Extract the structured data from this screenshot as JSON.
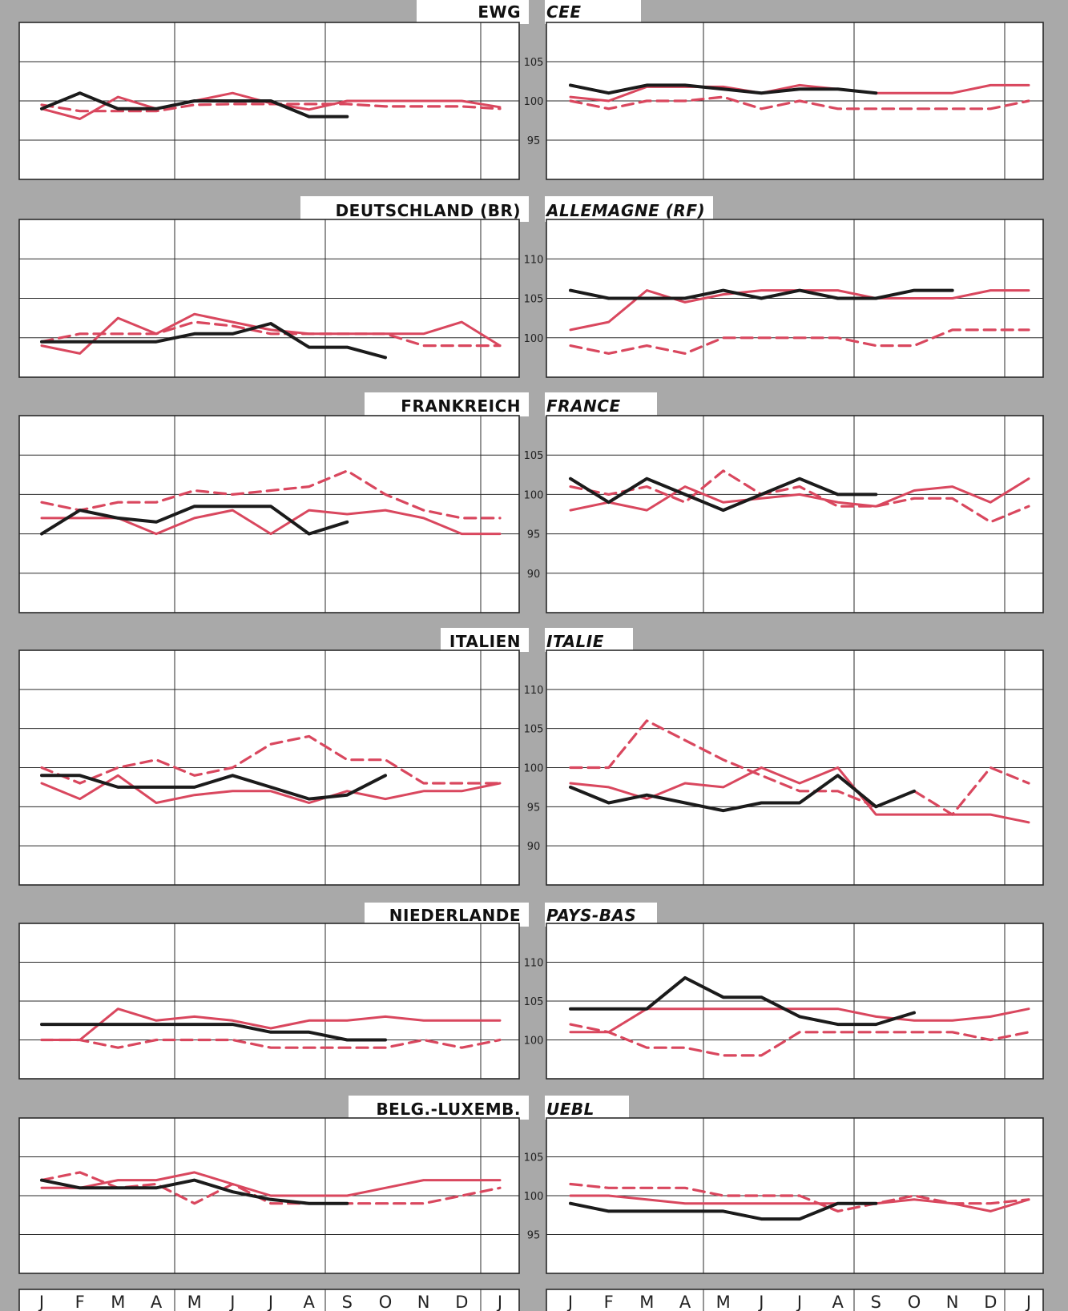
{
  "months": [
    "J",
    "F",
    "M",
    "A",
    "M",
    "J",
    "J",
    "A",
    "S",
    "O",
    "N",
    "D",
    "J"
  ],
  "colors": {
    "black": "#1b1b1b",
    "red": "#d9475e",
    "grid": "#2a2a2a",
    "gray": "#a9a9a9"
  },
  "chart_data": [
    {
      "type": "line",
      "title_de": "EWG",
      "title_fr": "CEE",
      "yticks": [
        95,
        100,
        105
      ],
      "ylim": [
        90,
        110
      ],
      "left": [
        {
          "style": "red-solid",
          "values": [
            99,
            97.7,
            100.5,
            99,
            100,
            101,
            99.7,
            98.9,
            100,
            100,
            100,
            100,
            99.2
          ]
        },
        {
          "style": "red-dashed",
          "values": [
            99.5,
            98.7,
            98.7,
            98.7,
            99.5,
            99.6,
            99.6,
            99.6,
            99.6,
            99.3,
            99.3,
            99.3,
            99
          ]
        },
        {
          "style": "black",
          "values": [
            99,
            101,
            99,
            99,
            100,
            100,
            100,
            98,
            98
          ]
        }
      ],
      "right": [
        {
          "style": "red-solid",
          "values": [
            100.5,
            100,
            101.8,
            101.8,
            101.8,
            101,
            102,
            101.5,
            101,
            101,
            101,
            102,
            102
          ]
        },
        {
          "style": "red-dashed",
          "values": [
            100,
            99,
            100,
            100,
            100.5,
            99,
            100,
            99,
            99,
            99,
            99,
            99,
            100
          ]
        },
        {
          "style": "black",
          "values": [
            102,
            101,
            102,
            102,
            101.5,
            101,
            101.5,
            101.5,
            101
          ]
        }
      ]
    },
    {
      "type": "line",
      "title_de": "DEUTSCHLAND (BR)",
      "title_fr": "ALLEMAGNE (RF)",
      "yticks": [
        100,
        105,
        110
      ],
      "ylim": [
        95,
        115
      ],
      "left": [
        {
          "style": "red-solid",
          "values": [
            99,
            98,
            102.5,
            100.5,
            103,
            102,
            101,
            100.5,
            100.5,
            100.5,
            100.5,
            102,
            99
          ]
        },
        {
          "style": "red-dashed",
          "values": [
            99.5,
            100.5,
            100.5,
            100.5,
            102,
            101.5,
            100.5,
            100.5,
            100.5,
            100.5,
            99,
            99,
            99
          ]
        },
        {
          "style": "black",
          "values": [
            99.5,
            99.5,
            99.5,
            99.5,
            100.5,
            100.5,
            101.8,
            98.8,
            98.8,
            97.5
          ]
        }
      ],
      "right": [
        {
          "style": "red-solid",
          "values": [
            101,
            102,
            106,
            104.5,
            105.5,
            106,
            106,
            106,
            105,
            105,
            105,
            106,
            106
          ]
        },
        {
          "style": "red-dashed",
          "values": [
            99,
            98,
            99,
            98,
            100,
            100,
            100,
            100,
            99,
            99,
            101,
            101,
            101
          ]
        },
        {
          "style": "black",
          "values": [
            106,
            105,
            105,
            105,
            106,
            105,
            106,
            105,
            105,
            106,
            106
          ]
        }
      ]
    },
    {
      "type": "line",
      "title_de": "FRANKREICH",
      "title_fr": "FRANCE",
      "yticks": [
        90,
        95,
        100,
        105
      ],
      "ylim": [
        85,
        110
      ],
      "left": [
        {
          "style": "red-solid",
          "values": [
            97,
            97,
            97,
            95,
            97,
            98,
            95,
            98,
            97.5,
            98,
            97,
            95,
            95
          ]
        },
        {
          "style": "red-dashed",
          "values": [
            99,
            98,
            99,
            99,
            100.5,
            100,
            100.5,
            101,
            103,
            100,
            98,
            97,
            97
          ]
        },
        {
          "style": "black",
          "values": [
            95,
            98,
            97,
            96.5,
            98.5,
            98.5,
            98.5,
            95,
            96.5
          ]
        }
      ],
      "right": [
        {
          "style": "red-solid",
          "values": [
            98,
            99,
            98,
            101,
            99,
            99.5,
            100,
            99,
            98.5,
            100.5,
            101,
            99,
            102
          ]
        },
        {
          "style": "red-dashed",
          "values": [
            101,
            100,
            101,
            99,
            103,
            100,
            101,
            98.5,
            98.5,
            99.5,
            99.5,
            96.5,
            98.5
          ]
        },
        {
          "style": "black",
          "values": [
            102,
            99,
            102,
            100,
            98,
            100,
            102,
            100,
            100
          ]
        }
      ]
    },
    {
      "type": "line",
      "title_de": "ITALIEN",
      "title_fr": "ITALIE",
      "yticks": [
        90,
        95,
        100,
        105,
        110
      ],
      "ylim": [
        85,
        115
      ],
      "left": [
        {
          "style": "red-solid",
          "values": [
            98,
            96,
            99,
            95.5,
            96.5,
            97,
            97,
            95.5,
            97,
            96,
            97,
            97,
            98
          ]
        },
        {
          "style": "red-dashed",
          "values": [
            100,
            98,
            100,
            101,
            99,
            100,
            103,
            104,
            101,
            101,
            98,
            98,
            98
          ]
        },
        {
          "style": "black",
          "values": [
            99,
            99,
            97.5,
            97.5,
            97.5,
            99,
            97.5,
            96,
            96.5,
            99
          ]
        }
      ],
      "right": [
        {
          "style": "red-solid",
          "values": [
            98,
            97.5,
            96,
            98,
            97.5,
            100,
            98,
            100,
            94,
            94,
            94,
            94,
            93
          ]
        },
        {
          "style": "red-dashed",
          "values": [
            100,
            100,
            106,
            103.5,
            101,
            99,
            97,
            97,
            95,
            97,
            94,
            100,
            98
          ]
        },
        {
          "style": "black",
          "values": [
            97.5,
            95.5,
            96.5,
            95.5,
            94.5,
            95.5,
            95.5,
            99,
            95,
            97
          ]
        }
      ]
    },
    {
      "type": "line",
      "title_de": "NIEDERLANDE",
      "title_fr": "PAYS-BAS",
      "yticks": [
        100,
        105,
        110
      ],
      "ylim": [
        95,
        115
      ],
      "left": [
        {
          "style": "red-solid",
          "values": [
            100,
            100,
            104,
            102.5,
            103,
            102.5,
            101.5,
            102.5,
            102.5,
            103,
            102.5,
            102.5,
            102.5
          ]
        },
        {
          "style": "red-dashed",
          "values": [
            100,
            100,
            99,
            100,
            100,
            100,
            99,
            99,
            99,
            99,
            100,
            99,
            100
          ]
        },
        {
          "style": "black",
          "values": [
            102,
            102,
            102,
            102,
            102,
            102,
            101,
            101,
            100,
            100
          ]
        }
      ],
      "right": [
        {
          "style": "red-solid",
          "values": [
            101,
            101,
            104,
            104,
            104,
            104,
            104,
            104,
            103,
            102.5,
            102.5,
            103,
            104
          ]
        },
        {
          "style": "red-dashed",
          "values": [
            102,
            101,
            99,
            99,
            98,
            98,
            101,
            101,
            101,
            101,
            101,
            100,
            101
          ]
        },
        {
          "style": "black",
          "values": [
            104,
            104,
            104,
            108,
            105.5,
            105.5,
            103,
            102,
            102,
            103.5
          ]
        }
      ]
    },
    {
      "type": "line",
      "title_de": "BELG.-LUXEMB.",
      "title_fr": "UEBL",
      "yticks": [
        95,
        100,
        105
      ],
      "ylim": [
        90,
        110
      ],
      "left": [
        {
          "style": "red-solid",
          "values": [
            101,
            101,
            102,
            102,
            103,
            101.5,
            100,
            100,
            100,
            101,
            102,
            102,
            102
          ]
        },
        {
          "style": "red-dashed",
          "values": [
            102,
            103,
            101,
            101.5,
            99,
            101.5,
            99,
            99,
            99,
            99,
            99,
            100,
            101
          ]
        },
        {
          "style": "black",
          "values": [
            102,
            101,
            101,
            101,
            102,
            100.5,
            99.5,
            99,
            99
          ]
        }
      ],
      "right": [
        {
          "style": "red-solid",
          "values": [
            100,
            100,
            99.5,
            99,
            99,
            99,
            99,
            99,
            99,
            99.5,
            99,
            98,
            99.5
          ]
        },
        {
          "style": "red-dashed",
          "values": [
            101.5,
            101,
            101,
            101,
            100,
            100,
            100,
            98,
            99,
            100,
            99,
            99,
            99.5
          ]
        },
        {
          "style": "black",
          "values": [
            99,
            98,
            98,
            98,
            98,
            97,
            97,
            99,
            99
          ]
        }
      ]
    }
  ]
}
